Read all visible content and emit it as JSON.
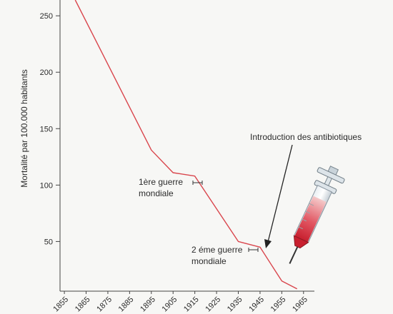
{
  "chart_data": {
    "type": "line",
    "title": "",
    "xlabel": "",
    "ylabel": "Mortalité par 100.000 habitants",
    "x_ticks": [
      "1855",
      "1865",
      "1875",
      "1885",
      "1895",
      "1905",
      "1915",
      "1925",
      "1935",
      "1945",
      "1955",
      "1965"
    ],
    "y_ticks": [
      "50",
      "100",
      "150",
      "200",
      "250"
    ],
    "xlim": [
      1853,
      1970
    ],
    "ylim": [
      6,
      264
    ],
    "grid": false,
    "line_color": "#d9454c",
    "series": [
      {
        "x": [
          1860,
          1895,
          1905,
          1915,
          1935,
          1945,
          1955,
          1962
        ],
        "y": [
          264,
          131,
          111,
          108,
          50,
          45,
          15,
          8
        ]
      }
    ],
    "annotations": {
      "ww1_line1": "1ère guerre",
      "ww1_line2": "mondiale",
      "ww2_line1": "2 éme guerre",
      "ww2_line2": "mondiale",
      "antibiotics": "Introduction des antibiotiques"
    }
  }
}
